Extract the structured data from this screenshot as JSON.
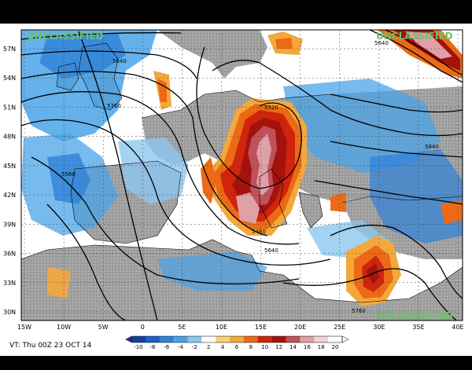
{
  "classification": {
    "top_left": "UNCLASSIFIED",
    "top_right": "UNCLASSIFIED",
    "bottom_right": "UNCLASSIFIED"
  },
  "valid_time": "VT: Thu 00Z 23 OCT 14",
  "lat_labels": [
    "57N",
    "54N",
    "51N",
    "48N",
    "45N",
    "42N",
    "39N",
    "36N",
    "33N",
    "30N"
  ],
  "lon_labels": [
    "15W",
    "10W",
    "5W",
    "0",
    "5E",
    "10E",
    "15E",
    "20E",
    "25E",
    "30E",
    "35E",
    "40E"
  ],
  "contour_labels": [
    "5640",
    "5760",
    "5520",
    "5840",
    "5580",
    "5640",
    "5460",
    "5640",
    "5760"
  ],
  "colorbar": {
    "ticks": [
      "-10",
      "-8",
      "-6",
      "-4",
      "-2",
      "2",
      "4",
      "6",
      "8",
      "10",
      "12",
      "14",
      "16",
      "18",
      "20"
    ],
    "colors": [
      "#14419c",
      "#1e5fc4",
      "#2f82d8",
      "#4aa3e8",
      "#8cc7f0",
      "#ffffff",
      "#f7d27a",
      "#f4a83c",
      "#ec6a16",
      "#d0240c",
      "#a4120e",
      "#c0505a",
      "#e0a0a8",
      "#f4d0d6",
      "#ffffff"
    ]
  },
  "footer": {
    "left": "",
    "right": ""
  }
}
